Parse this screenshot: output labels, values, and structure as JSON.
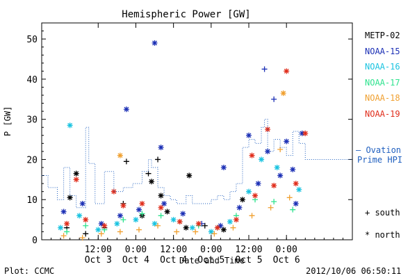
{
  "chart_data": {
    "type": "scatter",
    "title": "Hemispheric Power [GW]",
    "ylabel": "P [GW]",
    "xlabel": "Date and Time",
    "ylim": [
      0,
      54
    ],
    "yticks": [
      0,
      10,
      20,
      30,
      40,
      50
    ],
    "xlim": [
      "2012-10-02T18:00",
      "2012-10-06T21:00"
    ],
    "xticks": [
      {
        "time": "12:00",
        "day": "Oct 3"
      },
      {
        "time": "0:00",
        "day": "Oct 4"
      },
      {
        "time": "12:00",
        "day": "Oct 4"
      },
      {
        "time": "0:00",
        "day": "Oct 5"
      },
      {
        "time": "12:00",
        "day": "Oct 5"
      },
      {
        "time": "0:00",
        "day": "Oct 6"
      }
    ],
    "series": [
      {
        "name": "METP-02",
        "color": "#000000",
        "points": [
          {
            "t": "2012-10-03T03:00",
            "y": 10.5,
            "m": "north"
          },
          {
            "t": "2012-10-03T05:00",
            "y": 16.5,
            "m": "north"
          },
          {
            "t": "2012-10-04T17:00",
            "y": 16.0,
            "m": "north"
          },
          {
            "t": "2012-10-03T21:00",
            "y": 19.5,
            "m": "south"
          },
          {
            "t": "2012-10-04T04:00",
            "y": 16.5,
            "m": "south"
          },
          {
            "t": "2012-10-04T07:00",
            "y": 20.0,
            "m": "south"
          },
          {
            "t": "2012-10-04T08:00",
            "y": 11.0,
            "m": "north"
          },
          {
            "t": "2012-10-04T05:00",
            "y": 14.5,
            "m": "north"
          },
          {
            "t": "2012-10-03T02:00",
            "y": 3.0,
            "m": "south"
          },
          {
            "t": "2012-10-03T08:00",
            "y": 1.5,
            "m": "south"
          },
          {
            "t": "2012-10-03T14:00",
            "y": 3.0,
            "m": "south"
          },
          {
            "t": "2012-10-03T20:00",
            "y": 9.0,
            "m": "south"
          },
          {
            "t": "2012-10-04T02:00",
            "y": 6.0,
            "m": "north"
          },
          {
            "t": "2012-10-04T10:00",
            "y": 7.0,
            "m": "north"
          },
          {
            "t": "2012-10-04T16:00",
            "y": 3.0,
            "m": "north"
          },
          {
            "t": "2012-10-04T22:00",
            "y": 3.5,
            "m": "south"
          },
          {
            "t": "2012-10-05T04:00",
            "y": 2.5,
            "m": "north"
          },
          {
            "t": "2012-10-05T10:00",
            "y": 10.0,
            "m": "north"
          }
        ]
      },
      {
        "name": "NOAA-15",
        "color": "#1b2fb5",
        "points": [
          {
            "t": "2012-10-03T21:00",
            "y": 32.5,
            "m": "north"
          },
          {
            "t": "2012-10-04T06:00",
            "y": 49.0,
            "m": "north"
          },
          {
            "t": "2012-10-04T08:00",
            "y": 23.0,
            "m": "north"
          },
          {
            "t": "2012-10-05T04:00",
            "y": 18.0,
            "m": "north"
          },
          {
            "t": "2012-10-05T12:00",
            "y": 26.0,
            "m": "north"
          },
          {
            "t": "2012-10-05T17:00",
            "y": 42.5,
            "m": "south"
          },
          {
            "t": "2012-10-05T20:00",
            "y": 35.0,
            "m": "south"
          },
          {
            "t": "2012-10-05T18:00",
            "y": 22.0,
            "m": "north"
          },
          {
            "t": "2012-10-06T00:00",
            "y": 24.5,
            "m": "north"
          },
          {
            "t": "2012-10-06T05:00",
            "y": 26.5,
            "m": "north"
          },
          {
            "t": "2012-10-06T02:00",
            "y": 17.5,
            "m": "north"
          },
          {
            "t": "2012-10-03T01:00",
            "y": 7.0,
            "m": "north"
          },
          {
            "t": "2012-10-03T07:00",
            "y": 9.0,
            "m": "north"
          },
          {
            "t": "2012-10-03T13:00",
            "y": 4.0,
            "m": "north"
          },
          {
            "t": "2012-10-03T19:00",
            "y": 6.0,
            "m": "north"
          },
          {
            "t": "2012-10-04T01:00",
            "y": 7.5,
            "m": "north"
          },
          {
            "t": "2012-10-04T09:00",
            "y": 9.0,
            "m": "north"
          },
          {
            "t": "2012-10-04T15:00",
            "y": 6.5,
            "m": "north"
          },
          {
            "t": "2012-10-04T21:00",
            "y": 4.0,
            "m": "south"
          },
          {
            "t": "2012-10-05T03:00",
            "y": 3.5,
            "m": "north"
          },
          {
            "t": "2012-10-05T09:00",
            "y": 8.0,
            "m": "north"
          },
          {
            "t": "2012-10-05T15:00",
            "y": 14.0,
            "m": "north"
          },
          {
            "t": "2012-10-05T22:00",
            "y": 16.0,
            "m": "north"
          },
          {
            "t": "2012-10-06T03:00",
            "y": 9.0,
            "m": "north"
          }
        ]
      },
      {
        "name": "NOAA-16",
        "color": "#19c3e0",
        "points": [
          {
            "t": "2012-10-03T03:00",
            "y": 28.5,
            "m": "north"
          },
          {
            "t": "2012-10-03T00:00",
            "y": 3.0,
            "m": "north"
          },
          {
            "t": "2012-10-03T06:00",
            "y": 6.0,
            "m": "north"
          },
          {
            "t": "2012-10-03T12:00",
            "y": 2.5,
            "m": "north"
          },
          {
            "t": "2012-10-03T18:00",
            "y": 4.0,
            "m": "north"
          },
          {
            "t": "2012-10-04T00:00",
            "y": 5.0,
            "m": "north"
          },
          {
            "t": "2012-10-04T06:00",
            "y": 4.0,
            "m": "north"
          },
          {
            "t": "2012-10-04T12:00",
            "y": 5.0,
            "m": "north"
          },
          {
            "t": "2012-10-04T18:00",
            "y": 3.0,
            "m": "north"
          },
          {
            "t": "2012-10-05T00:00",
            "y": 2.0,
            "m": "north"
          },
          {
            "t": "2012-10-05T06:00",
            "y": 4.5,
            "m": "north"
          },
          {
            "t": "2012-10-05T12:00",
            "y": 12.0,
            "m": "north"
          },
          {
            "t": "2012-10-05T16:00",
            "y": 20.0,
            "m": "north"
          },
          {
            "t": "2012-10-05T21:00",
            "y": 18.0,
            "m": "north"
          },
          {
            "t": "2012-10-06T04:00",
            "y": 12.5,
            "m": "north"
          }
        ]
      },
      {
        "name": "NOAA-17",
        "color": "#2ee38e",
        "points": [
          {
            "t": "2012-10-03T02:00",
            "y": 2.0,
            "m": "south"
          },
          {
            "t": "2012-10-03T08:00",
            "y": 3.5,
            "m": "south"
          },
          {
            "t": "2012-10-03T14:00",
            "y": 2.5,
            "m": "south"
          },
          {
            "t": "2012-10-03T20:00",
            "y": 5.0,
            "m": "south"
          },
          {
            "t": "2012-10-04T02:00",
            "y": 6.5,
            "m": "south"
          },
          {
            "t": "2012-10-04T08:00",
            "y": 6.0,
            "m": "south"
          },
          {
            "t": "2012-10-04T14:00",
            "y": 4.5,
            "m": "south"
          },
          {
            "t": "2012-10-04T20:00",
            "y": 3.5,
            "m": "south"
          },
          {
            "t": "2012-10-05T02:00",
            "y": 3.0,
            "m": "south"
          },
          {
            "t": "2012-10-05T08:00",
            "y": 6.0,
            "m": "south"
          },
          {
            "t": "2012-10-05T14:00",
            "y": 10.0,
            "m": "south"
          },
          {
            "t": "2012-10-05T20:00",
            "y": 9.5,
            "m": "south"
          },
          {
            "t": "2012-10-06T02:00",
            "y": 7.5,
            "m": "south"
          }
        ]
      },
      {
        "name": "NOAA-18",
        "color": "#f0a030",
        "points": [
          {
            "t": "2012-10-03T19:00",
            "y": 21.0,
            "m": "north"
          },
          {
            "t": "2012-10-05T23:00",
            "y": 36.5,
            "m": "north"
          },
          {
            "t": "2012-10-05T22:00",
            "y": 22.5,
            "m": "south"
          },
          {
            "t": "2012-10-03T01:00",
            "y": 1.0,
            "m": "south"
          },
          {
            "t": "2012-10-03T07:00",
            "y": 0.5,
            "m": "south"
          },
          {
            "t": "2012-10-03T13:00",
            "y": 1.5,
            "m": "south"
          },
          {
            "t": "2012-10-03T19:00",
            "y": 2.0,
            "m": "south"
          },
          {
            "t": "2012-10-04T01:00",
            "y": 2.5,
            "m": "south"
          },
          {
            "t": "2012-10-04T07:00",
            "y": 3.5,
            "m": "south"
          },
          {
            "t": "2012-10-04T13:00",
            "y": 2.0,
            "m": "south"
          },
          {
            "t": "2012-10-04T19:00",
            "y": 2.0,
            "m": "south"
          },
          {
            "t": "2012-10-05T01:00",
            "y": 1.5,
            "m": "south"
          },
          {
            "t": "2012-10-05T07:00",
            "y": 3.0,
            "m": "south"
          },
          {
            "t": "2012-10-05T13:00",
            "y": 6.0,
            "m": "south"
          },
          {
            "t": "2012-10-05T19:00",
            "y": 8.0,
            "m": "south"
          },
          {
            "t": "2012-10-06T01:00",
            "y": 10.5,
            "m": "south"
          }
        ]
      },
      {
        "name": "NOAA-19",
        "color": "#e02d1b",
        "points": [
          {
            "t": "2012-10-03T05:00",
            "y": 15.0,
            "m": "north"
          },
          {
            "t": "2012-10-03T17:00",
            "y": 12.0,
            "m": "north"
          },
          {
            "t": "2012-10-05T18:00",
            "y": 27.5,
            "m": "north"
          },
          {
            "t": "2012-10-06T00:00",
            "y": 42.0,
            "m": "north"
          },
          {
            "t": "2012-10-06T06:00",
            "y": 26.5,
            "m": "north"
          },
          {
            "t": "2012-10-05T13:00",
            "y": 21.0,
            "m": "north"
          },
          {
            "t": "2012-10-03T02:00",
            "y": 4.0,
            "m": "north"
          },
          {
            "t": "2012-10-03T08:00",
            "y": 5.0,
            "m": "north"
          },
          {
            "t": "2012-10-03T14:00",
            "y": 3.5,
            "m": "north"
          },
          {
            "t": "2012-10-03T20:00",
            "y": 8.5,
            "m": "north"
          },
          {
            "t": "2012-10-04T02:00",
            "y": 9.0,
            "m": "north"
          },
          {
            "t": "2012-10-04T08:00",
            "y": 8.0,
            "m": "north"
          },
          {
            "t": "2012-10-04T14:00",
            "y": 4.5,
            "m": "north"
          },
          {
            "t": "2012-10-04T20:00",
            "y": 4.0,
            "m": "north"
          },
          {
            "t": "2012-10-05T02:00",
            "y": 3.0,
            "m": "north"
          },
          {
            "t": "2012-10-05T08:00",
            "y": 5.0,
            "m": "north"
          },
          {
            "t": "2012-10-05T14:00",
            "y": 11.0,
            "m": "north"
          },
          {
            "t": "2012-10-05T20:00",
            "y": 13.5,
            "m": "north"
          },
          {
            "t": "2012-10-06T03:00",
            "y": 14.0,
            "m": "north"
          }
        ]
      },
      {
        "name": "Ovation Prime HPI",
        "color": "#1f5fbf",
        "style": "dotted-step",
        "steps": [
          [
            "2012-10-02T18:00",
            16
          ],
          [
            "2012-10-02T20:00",
            13
          ],
          [
            "2012-10-02T23:00",
            10
          ],
          [
            "2012-10-03T01:00",
            18
          ],
          [
            "2012-10-03T03:00",
            11
          ],
          [
            "2012-10-03T05:00",
            8
          ],
          [
            "2012-10-03T08:00",
            28
          ],
          [
            "2012-10-03T09:00",
            19
          ],
          [
            "2012-10-03T11:00",
            9
          ],
          [
            "2012-10-03T14:00",
            17
          ],
          [
            "2012-10-03T17:00",
            12
          ],
          [
            "2012-10-03T20:00",
            13
          ],
          [
            "2012-10-03T23:00",
            14
          ],
          [
            "2012-10-04T02:00",
            17
          ],
          [
            "2012-10-04T04:00",
            20
          ],
          [
            "2012-10-04T05:00",
            18
          ],
          [
            "2012-10-04T07:00",
            13
          ],
          [
            "2012-10-04T09:00",
            11
          ],
          [
            "2012-10-04T11:00",
            10
          ],
          [
            "2012-10-04T13:00",
            9
          ],
          [
            "2012-10-04T16:00",
            11
          ],
          [
            "2012-10-04T18:00",
            9
          ],
          [
            "2012-10-04T21:00",
            9
          ],
          [
            "2012-10-05T00:00",
            10
          ],
          [
            "2012-10-05T02:00",
            11
          ],
          [
            "2012-10-05T04:00",
            10
          ],
          [
            "2012-10-05T06:00",
            12
          ],
          [
            "2012-10-05T08:00",
            14
          ],
          [
            "2012-10-05T10:00",
            23
          ],
          [
            "2012-10-05T12:00",
            25
          ],
          [
            "2012-10-05T14:00",
            24
          ],
          [
            "2012-10-05T16:00",
            28
          ],
          [
            "2012-10-05T17:00",
            30
          ],
          [
            "2012-10-05T18:00",
            22
          ],
          [
            "2012-10-05T20:00",
            25
          ],
          [
            "2012-10-05T22:00",
            23
          ],
          [
            "2012-10-06T00:00",
            21
          ],
          [
            "2012-10-06T02:00",
            27
          ],
          [
            "2012-10-06T04:00",
            24
          ],
          [
            "2012-10-06T06:00",
            20
          ]
        ]
      }
    ],
    "legend": {
      "entries": [
        "METP-02",
        "NOAA-15",
        "NOAA-16",
        "NOAA-17",
        "NOAA-18",
        "NOAA-19"
      ],
      "ovation_label": [
        "— Ovation",
        "Prime HPI"
      ],
      "markers": {
        "south": "+ south",
        "north": "* north"
      },
      "placement": "right"
    }
  },
  "footer": {
    "credit": "Plot: CCMC",
    "timestamp": "2012/10/06 06:50:11"
  }
}
